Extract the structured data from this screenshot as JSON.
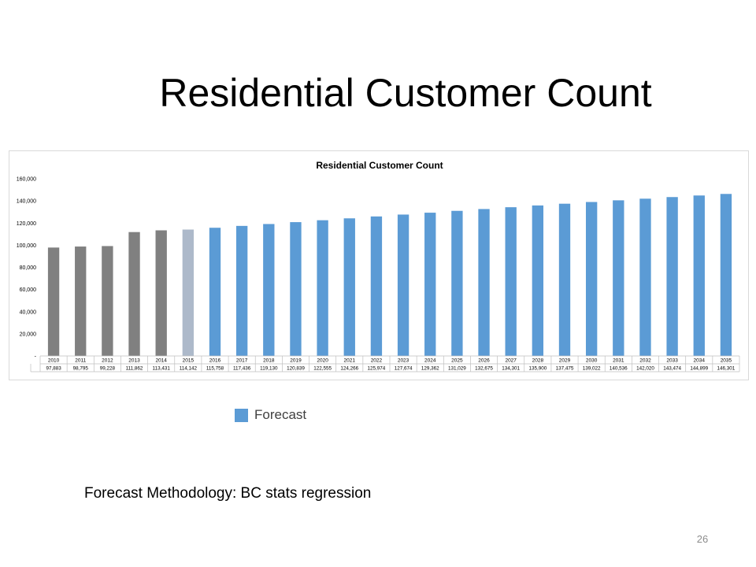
{
  "slide": {
    "title": "Residential Customer Count",
    "legend_label": "Forecast",
    "methodology": "Forecast Methodology: BC stats regression",
    "page_number": "26"
  },
  "colors": {
    "actual": "#808080",
    "estimate": "#adb9ca",
    "forecast": "#5b9bd5"
  },
  "chart_data": {
    "type": "bar",
    "title": "Residential Customer Count",
    "xlabel": "",
    "ylabel": "",
    "ylim": [
      0,
      160000
    ],
    "yticks": [
      0,
      20000,
      40000,
      60000,
      80000,
      100000,
      120000,
      140000,
      160000
    ],
    "ytick_labels": [
      "-",
      "20,000",
      "40,000",
      "60,000",
      "80,000",
      "100,000",
      "120,000",
      "140,000",
      "160,000"
    ],
    "grid": false,
    "categories": [
      "2010",
      "2011",
      "2012",
      "2013",
      "2014",
      "2015",
      "2016",
      "2017",
      "2018",
      "2019",
      "2020",
      "2021",
      "2022",
      "2023",
      "2024",
      "2025",
      "2026",
      "2027",
      "2028",
      "2029",
      "2030",
      "2031",
      "2032",
      "2033",
      "2034",
      "2035"
    ],
    "values": [
      97883,
      98795,
      99228,
      111862,
      113431,
      114142,
      115758,
      117436,
      119130,
      120839,
      122555,
      124266,
      125974,
      127674,
      129362,
      131029,
      132675,
      134301,
      135900,
      137475,
      139022,
      140536,
      142020,
      143474,
      144899,
      146301
    ],
    "value_labels": [
      "97,883",
      "98,795",
      "99,228",
      "111,862",
      "113,431",
      "114,142",
      "115,758",
      "117,436",
      "119,130",
      "120,839",
      "122,555",
      "124,266",
      "125,974",
      "127,674",
      "129,362",
      "131,029",
      "132,675",
      "134,301",
      "135,900",
      "137,475",
      "139,022",
      "140,536",
      "142,020",
      "143,474",
      "144,899",
      "146,301"
    ],
    "bar_status": [
      "actual",
      "actual",
      "actual",
      "actual",
      "actual",
      "estimate",
      "forecast",
      "forecast",
      "forecast",
      "forecast",
      "forecast",
      "forecast",
      "forecast",
      "forecast",
      "forecast",
      "forecast",
      "forecast",
      "forecast",
      "forecast",
      "forecast",
      "forecast",
      "forecast",
      "forecast",
      "forecast",
      "forecast",
      "forecast"
    ],
    "legend": {
      "placement": "below",
      "entries": [
        "Forecast"
      ]
    },
    "data_table": true
  }
}
